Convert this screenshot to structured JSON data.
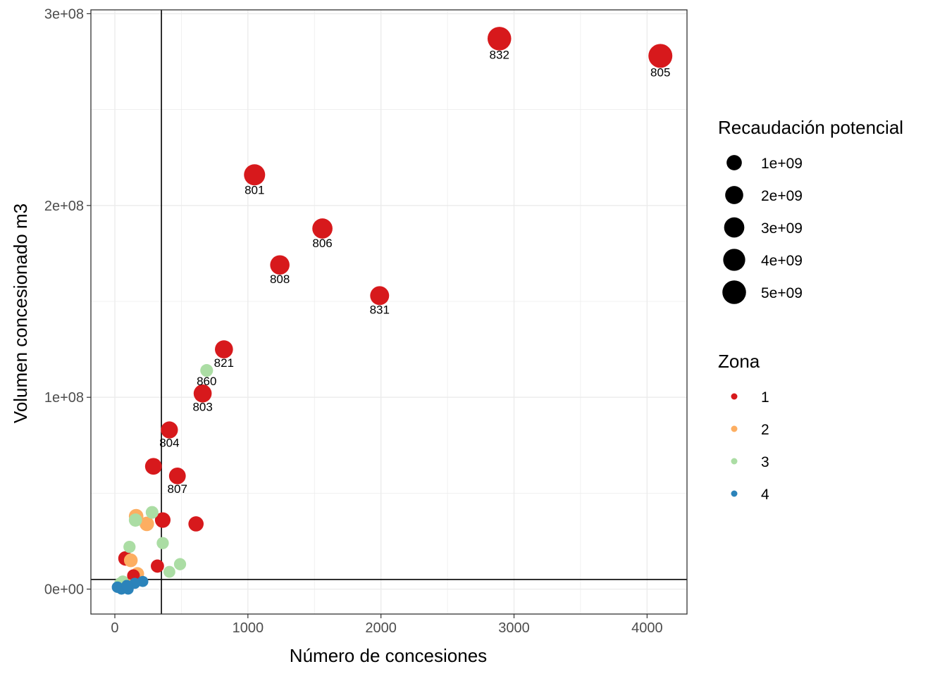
{
  "chart_data": {
    "type": "scatter",
    "title": "",
    "xlabel": "Número de concesiones",
    "ylabel": "Volumen concesionado m3",
    "xlim": [
      -180,
      4300
    ],
    "ylim": [
      -13000000,
      302000000
    ],
    "x_ticks": [
      0,
      1000,
      2000,
      3000,
      4000
    ],
    "x_tick_labels": [
      "0",
      "1000",
      "2000",
      "3000",
      "4000"
    ],
    "y_ticks": [
      0,
      100000000,
      200000000,
      300000000
    ],
    "y_tick_labels": [
      "0e+00",
      "1e+08",
      "2e+08",
      "3e+08"
    ],
    "grid": true,
    "reference_lines": {
      "vertical_x": 350,
      "horizontal_y": 5000000
    },
    "legend_size": {
      "title": "Recaudación potencial",
      "position": "right",
      "items": [
        {
          "label": "1e+09",
          "value": 1000000000
        },
        {
          "label": "2e+09",
          "value": 2000000000
        },
        {
          "label": "3e+09",
          "value": 3000000000
        },
        {
          "label": "4e+09",
          "value": 4000000000
        },
        {
          "label": "5e+09",
          "value": 5000000000
        }
      ]
    },
    "legend_color": {
      "title": "Zona",
      "position": "right",
      "items": [
        {
          "label": "1",
          "color": "#d7191c"
        },
        {
          "label": "2",
          "color": "#fdae61"
        },
        {
          "label": "3",
          "color": "#abdda4"
        },
        {
          "label": "4",
          "color": "#2b83ba"
        }
      ]
    },
    "points": [
      {
        "x": 2890,
        "y": 287000000,
        "zona": "1",
        "recaudacion": 5000000000,
        "label": "832"
      },
      {
        "x": 4100,
        "y": 278000000,
        "zona": "1",
        "recaudacion": 5200000000,
        "label": "805"
      },
      {
        "x": 1050,
        "y": 216000000,
        "zona": "1",
        "recaudacion": 3500000000,
        "label": "801"
      },
      {
        "x": 1560,
        "y": 188000000,
        "zona": "1",
        "recaudacion": 3000000000,
        "label": "806"
      },
      {
        "x": 1240,
        "y": 169000000,
        "zona": "1",
        "recaudacion": 2600000000,
        "label": "808"
      },
      {
        "x": 1990,
        "y": 153000000,
        "zona": "1",
        "recaudacion": 2400000000,
        "label": "831"
      },
      {
        "x": 820,
        "y": 125000000,
        "zona": "1",
        "recaudacion": 2000000000,
        "label": "821"
      },
      {
        "x": 690,
        "y": 114000000,
        "zona": "3",
        "recaudacion": 400000000,
        "label": "860"
      },
      {
        "x": 660,
        "y": 102000000,
        "zona": "1",
        "recaudacion": 2000000000,
        "label": "803"
      },
      {
        "x": 410,
        "y": 83000000,
        "zona": "1",
        "recaudacion": 1600000000,
        "label": "804"
      },
      {
        "x": 470,
        "y": 59000000,
        "zona": "1",
        "recaudacion": 1500000000,
        "label": "807"
      },
      {
        "x": 290,
        "y": 64000000,
        "zona": "1",
        "recaudacion": 1500000000,
        "label": ""
      },
      {
        "x": 360,
        "y": 36000000,
        "zona": "1",
        "recaudacion": 1100000000,
        "label": ""
      },
      {
        "x": 610,
        "y": 34000000,
        "zona": "1",
        "recaudacion": 1000000000,
        "label": ""
      },
      {
        "x": 80,
        "y": 16000000,
        "zona": "1",
        "recaudacion": 800000000,
        "label": ""
      },
      {
        "x": 320,
        "y": 12000000,
        "zona": "1",
        "recaudacion": 500000000,
        "label": ""
      },
      {
        "x": 140,
        "y": 7000000,
        "zona": "1",
        "recaudacion": 400000000,
        "label": ""
      },
      {
        "x": 160,
        "y": 38000000,
        "zona": "2",
        "recaudacion": 800000000,
        "label": ""
      },
      {
        "x": 240,
        "y": 34000000,
        "zona": "2",
        "recaudacion": 800000000,
        "label": ""
      },
      {
        "x": 120,
        "y": 15000000,
        "zona": "2",
        "recaudacion": 600000000,
        "label": ""
      },
      {
        "x": 170,
        "y": 8000000,
        "zona": "2",
        "recaudacion": 500000000,
        "label": ""
      },
      {
        "x": 100,
        "y": 2000000,
        "zona": "2",
        "recaudacion": 300000000,
        "label": ""
      },
      {
        "x": 280,
        "y": 40000000,
        "zona": "3",
        "recaudacion": 400000000,
        "label": ""
      },
      {
        "x": 155,
        "y": 36000000,
        "zona": "3",
        "recaudacion": 500000000,
        "label": ""
      },
      {
        "x": 360,
        "y": 24000000,
        "zona": "3",
        "recaudacion": 300000000,
        "label": ""
      },
      {
        "x": 110,
        "y": 22000000,
        "zona": "3",
        "recaudacion": 300000000,
        "label": ""
      },
      {
        "x": 490,
        "y": 13000000,
        "zona": "3",
        "recaudacion": 300000000,
        "label": ""
      },
      {
        "x": 410,
        "y": 9000000,
        "zona": "3",
        "recaudacion": 250000000,
        "label": ""
      },
      {
        "x": 40,
        "y": 3000000,
        "zona": "3",
        "recaudacion": 250000000,
        "label": ""
      },
      {
        "x": 60,
        "y": 4000000,
        "zona": "3",
        "recaudacion": 250000000,
        "label": ""
      },
      {
        "x": 20,
        "y": 1000000,
        "zona": "4",
        "recaudacion": 200000000,
        "label": ""
      },
      {
        "x": 50,
        "y": 0,
        "zona": "4",
        "recaudacion": 150000000,
        "label": ""
      },
      {
        "x": 100,
        "y": 0,
        "zona": "4",
        "recaudacion": 150000000,
        "label": ""
      },
      {
        "x": 150,
        "y": 3000000,
        "zona": "4",
        "recaudacion": 150000000,
        "label": ""
      },
      {
        "x": 210,
        "y": 4000000,
        "zona": "4",
        "recaudacion": 150000000,
        "label": ""
      },
      {
        "x": 90,
        "y": 2000000,
        "zona": "4",
        "recaudacion": 120000000,
        "label": ""
      }
    ]
  }
}
